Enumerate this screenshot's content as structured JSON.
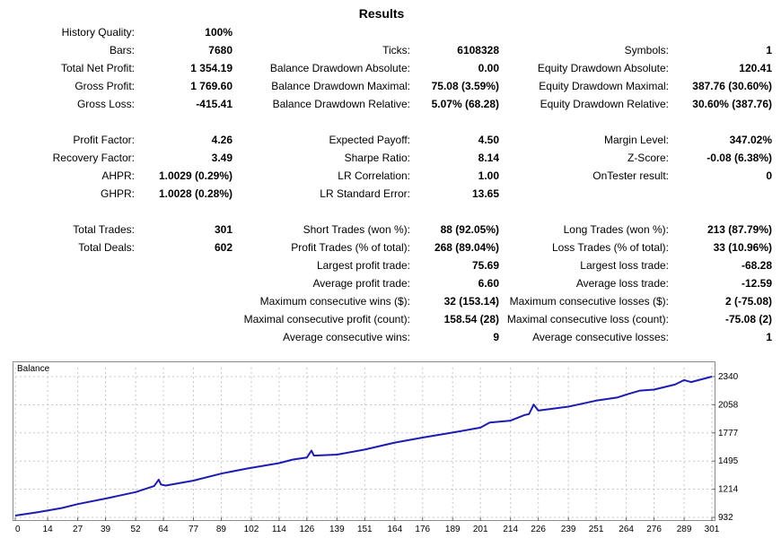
{
  "title": "Results",
  "stats": [
    {
      "label": "History Quality:",
      "value": "100%",
      "col": 0,
      "row": 0
    },
    {
      "label": "Bars:",
      "value": "7680",
      "col": 0,
      "row": 1
    },
    {
      "label": "Ticks:",
      "value": "6108328",
      "col": 1,
      "row": 1
    },
    {
      "label": "Symbols:",
      "value": "1",
      "col": 2,
      "row": 1
    },
    {
      "label": "Total Net Profit:",
      "value": "1 354.19",
      "col": 0,
      "row": 2
    },
    {
      "label": "Balance Drawdown Absolute:",
      "value": "0.00",
      "col": 1,
      "row": 2
    },
    {
      "label": "Equity Drawdown Absolute:",
      "value": "120.41",
      "col": 2,
      "row": 2
    },
    {
      "label": "Gross Profit:",
      "value": "1 769.60",
      "col": 0,
      "row": 3
    },
    {
      "label": "Balance Drawdown Maximal:",
      "value": "75.08 (3.59%)",
      "col": 1,
      "row": 3
    },
    {
      "label": "Equity Drawdown Maximal:",
      "value": "387.76 (30.60%)",
      "col": 2,
      "row": 3
    },
    {
      "label": "Gross Loss:",
      "value": "-415.41",
      "col": 0,
      "row": 4
    },
    {
      "label": "Balance Drawdown Relative:",
      "value": "5.07% (68.28)",
      "col": 1,
      "row": 4
    },
    {
      "label": "Equity Drawdown Relative:",
      "value": "30.60% (387.76)",
      "col": 2,
      "row": 4
    },
    {
      "label": "Profit Factor:",
      "value": "4.26",
      "col": 0,
      "row": 6
    },
    {
      "label": "Expected Payoff:",
      "value": "4.50",
      "col": 1,
      "row": 6
    },
    {
      "label": "Margin Level:",
      "value": "347.02%",
      "col": 2,
      "row": 6
    },
    {
      "label": "Recovery Factor:",
      "value": "3.49",
      "col": 0,
      "row": 7
    },
    {
      "label": "Sharpe Ratio:",
      "value": "8.14",
      "col": 1,
      "row": 7
    },
    {
      "label": "Z-Score:",
      "value": "-0.08 (6.38%)",
      "col": 2,
      "row": 7
    },
    {
      "label": "AHPR:",
      "value": "1.0029 (0.29%)",
      "col": 0,
      "row": 8
    },
    {
      "label": "LR Correlation:",
      "value": "1.00",
      "col": 1,
      "row": 8
    },
    {
      "label": "OnTester result:",
      "value": "0",
      "col": 2,
      "row": 8
    },
    {
      "label": "GHPR:",
      "value": "1.0028 (0.28%)",
      "col": 0,
      "row": 9
    },
    {
      "label": "LR Standard Error:",
      "value": "13.65",
      "col": 1,
      "row": 9
    },
    {
      "label": "Total Trades:",
      "value": "301",
      "col": 0,
      "row": 11
    },
    {
      "label": "Short Trades (won %):",
      "value": "88 (92.05%)",
      "col": 1,
      "row": 11
    },
    {
      "label": "Long Trades (won %):",
      "value": "213 (87.79%)",
      "col": 2,
      "row": 11
    },
    {
      "label": "Total Deals:",
      "value": "602",
      "col": 0,
      "row": 12
    },
    {
      "label": "Profit Trades (% of total):",
      "value": "268 (89.04%)",
      "col": 1,
      "row": 12
    },
    {
      "label": "Loss Trades (% of total):",
      "value": "33 (10.96%)",
      "col": 2,
      "row": 12
    },
    {
      "label": "Largest profit trade:",
      "value": "75.69",
      "col": 1,
      "row": 13
    },
    {
      "label": "Largest loss trade:",
      "value": "-68.28",
      "col": 2,
      "row": 13
    },
    {
      "label": "Average profit trade:",
      "value": "6.60",
      "col": 1,
      "row": 14
    },
    {
      "label": "Average loss trade:",
      "value": "-12.59",
      "col": 2,
      "row": 14
    },
    {
      "label": "Maximum consecutive wins ($):",
      "value": "32 (153.14)",
      "col": 1,
      "row": 15
    },
    {
      "label": "Maximum consecutive losses ($):",
      "value": "2 (-75.08)",
      "col": 2,
      "row": 15
    },
    {
      "label": "Maximal consecutive profit (count):",
      "value": "158.54 (28)",
      "col": 1,
      "row": 16
    },
    {
      "label": "Maximal consecutive loss (count):",
      "value": "-75.08 (2)",
      "col": 2,
      "row": 16
    },
    {
      "label": "Average consecutive wins:",
      "value": "9",
      "col": 1,
      "row": 17
    },
    {
      "label": "Average consecutive losses:",
      "value": "1",
      "col": 2,
      "row": 17
    }
  ],
  "chart": {
    "label": "Balance",
    "line_color": "#1c1cb4",
    "grid_color": "#c8c8c8",
    "y_ticks": [
      "2340",
      "2058",
      "1777",
      "1495",
      "1214",
      "932"
    ],
    "x_ticks": [
      "0",
      "14",
      "27",
      "39",
      "52",
      "64",
      "77",
      "89",
      "102",
      "114",
      "126",
      "139",
      "151",
      "164",
      "176",
      "189",
      "201",
      "214",
      "226",
      "239",
      "251",
      "264",
      "276",
      "289",
      "301"
    ]
  },
  "chart_data": {
    "type": "line",
    "xlabel": "",
    "ylabel": "",
    "xlim": [
      0,
      301
    ],
    "ylim": [
      932,
      2340
    ],
    "x": [
      0,
      10,
      20,
      27,
      40,
      52,
      60,
      62,
      63,
      65,
      77,
      89,
      100,
      114,
      120,
      126,
      128,
      129,
      139,
      151,
      164,
      176,
      189,
      201,
      205,
      214,
      220,
      222,
      224,
      226,
      239,
      251,
      260,
      264,
      270,
      276,
      285,
      289,
      292,
      301
    ],
    "y": [
      950,
      985,
      1025,
      1065,
      1125,
      1185,
      1245,
      1310,
      1260,
      1250,
      1300,
      1370,
      1420,
      1475,
      1510,
      1530,
      1600,
      1550,
      1560,
      1610,
      1680,
      1730,
      1780,
      1830,
      1880,
      1900,
      1955,
      1965,
      2060,
      2000,
      2040,
      2100,
      2130,
      2160,
      2200,
      2210,
      2260,
      2305,
      2285,
      2340
    ]
  }
}
